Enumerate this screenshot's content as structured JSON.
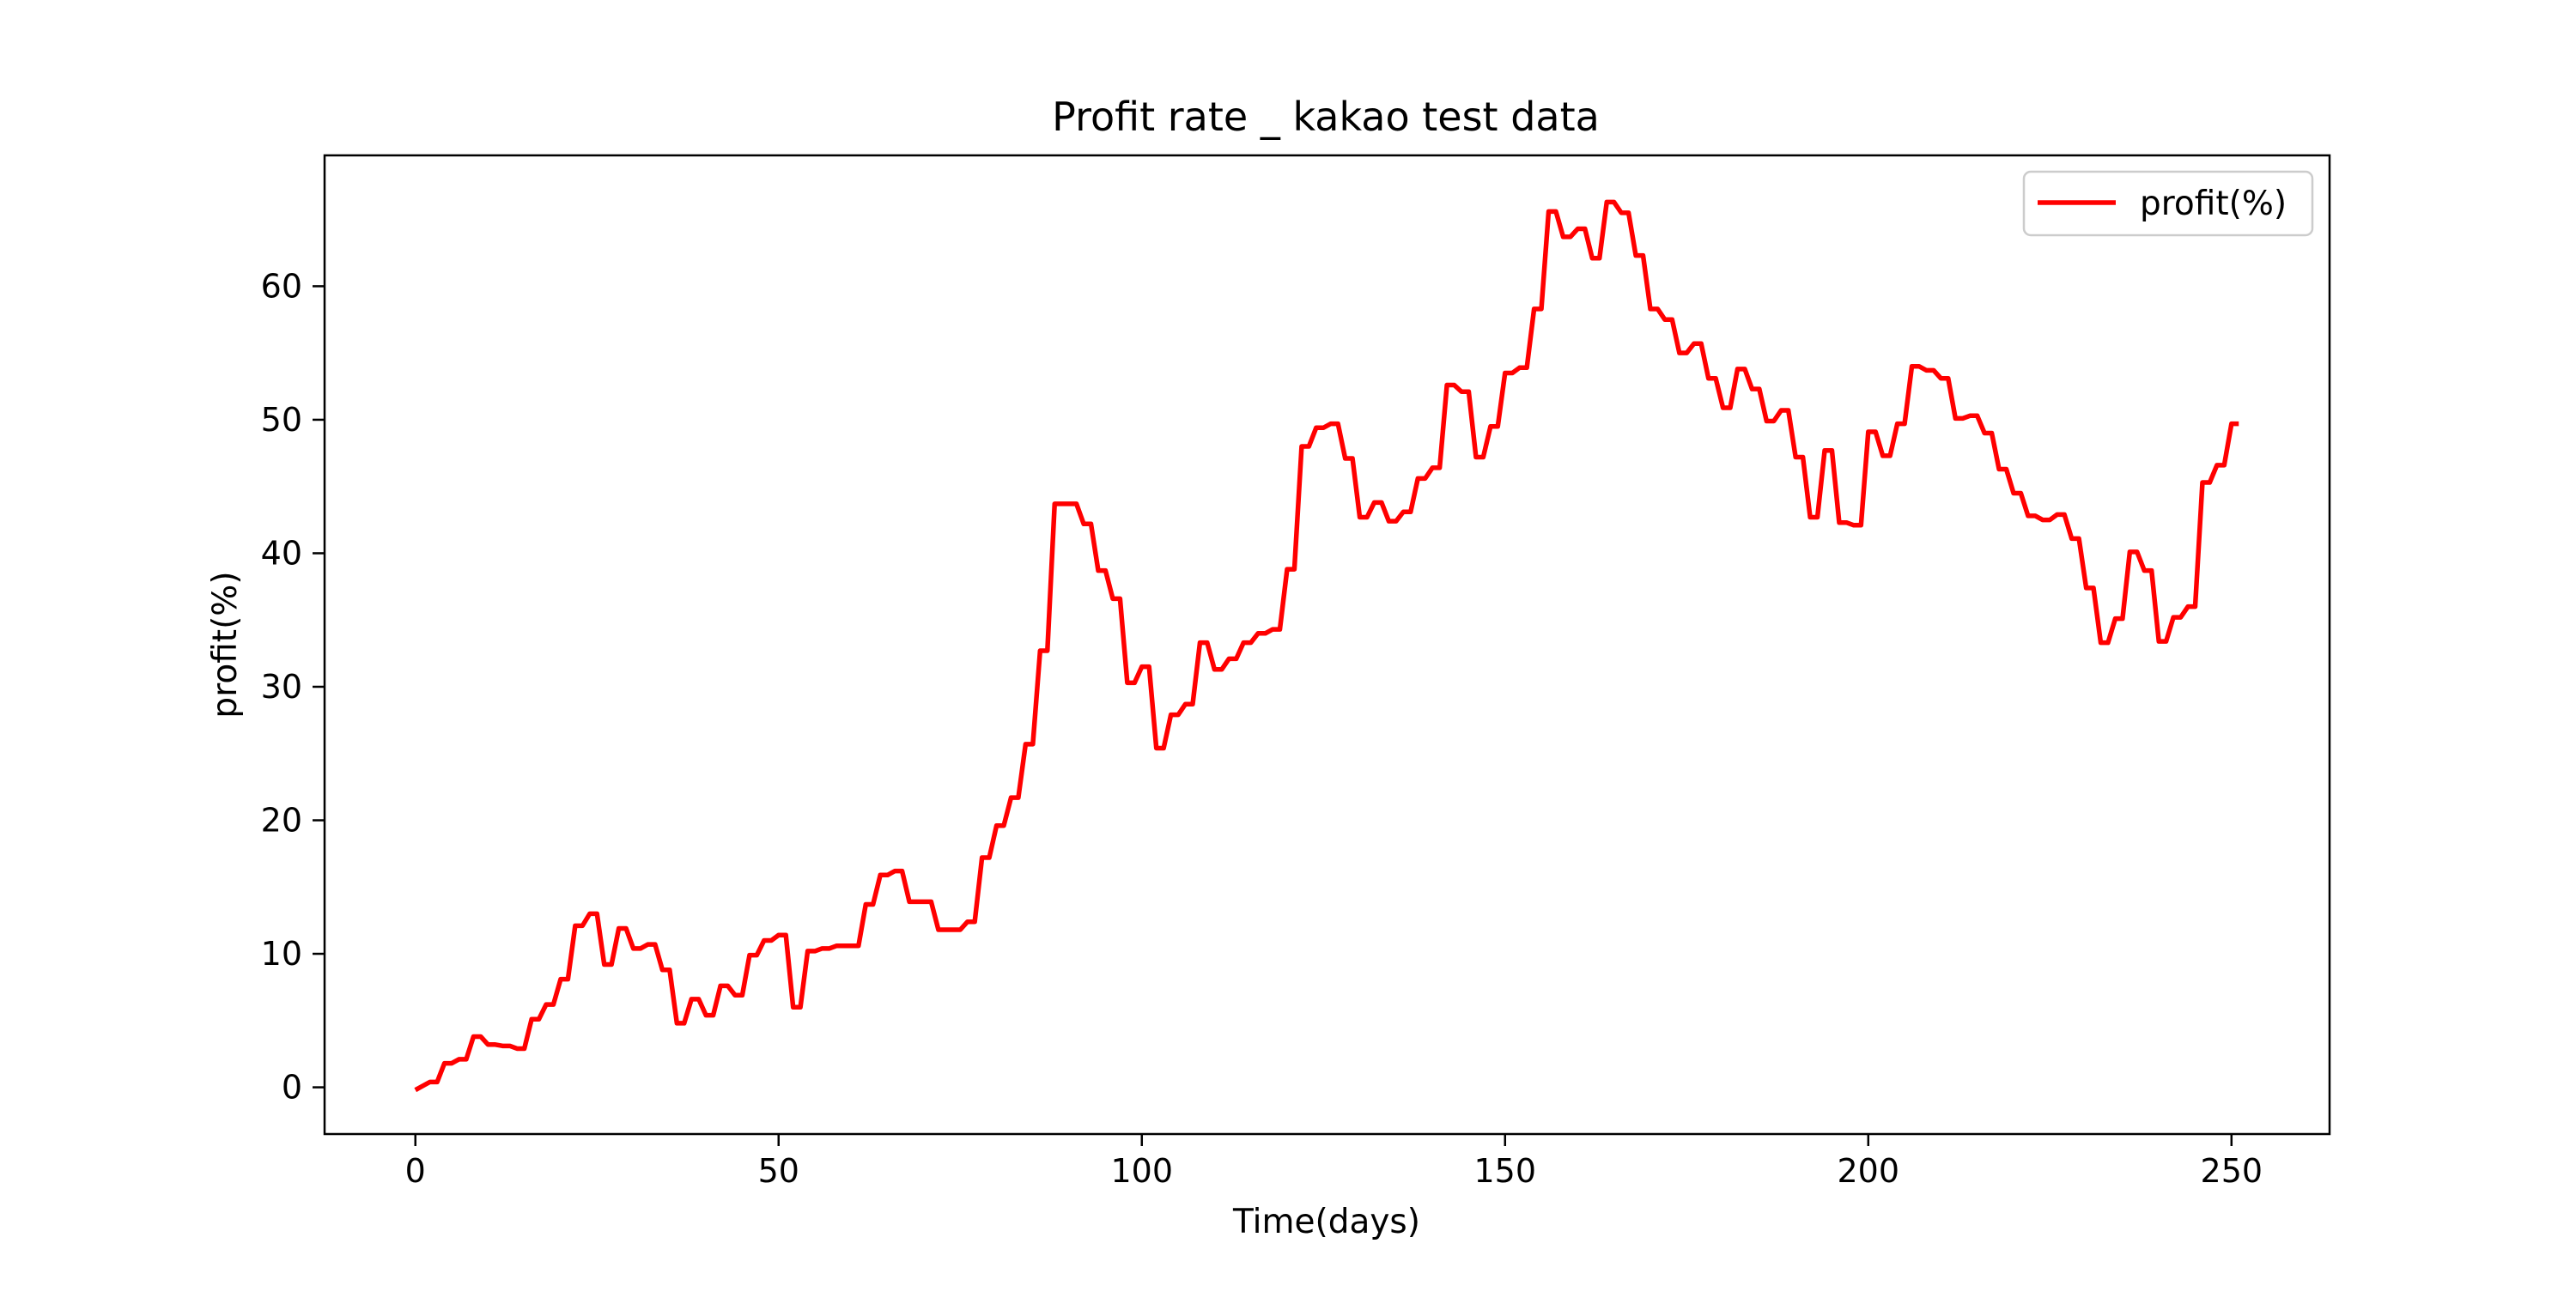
{
  "chart_data": {
    "type": "line",
    "title": "Profit rate _ kakao test data",
    "xlabel": "Time(days)",
    "ylabel": "profit(%)",
    "xlim": [
      -12.5,
      263.5
    ],
    "ylim": [
      -3.5,
      69.8
    ],
    "xticks": [
      0,
      50,
      100,
      150,
      200,
      250
    ],
    "yticks": [
      0,
      10,
      20,
      30,
      40,
      50,
      60
    ],
    "xtick_labels": [
      "0",
      "50",
      "100",
      "150",
      "200",
      "250"
    ],
    "ytick_labels": [
      "0",
      "10",
      "20",
      "30",
      "40",
      "50",
      "60"
    ],
    "grid": false,
    "legend_position": "top-right",
    "series": [
      {
        "name": "profit(%)",
        "color": "#ff0000",
        "values": [
          -0.2,
          0.1,
          0.4,
          0.4,
          1.8,
          1.8,
          2.1,
          2.1,
          3.8,
          3.8,
          3.2,
          3.2,
          3.1,
          3.1,
          2.9,
          2.9,
          5.1,
          5.1,
          6.2,
          6.2,
          8.1,
          8.1,
          12.1,
          12.1,
          13.0,
          13.0,
          9.2,
          9.2,
          11.9,
          11.9,
          10.4,
          10.4,
          10.7,
          10.7,
          8.8,
          8.8,
          4.8,
          4.8,
          6.6,
          6.6,
          5.4,
          5.4,
          7.6,
          7.6,
          6.9,
          6.9,
          9.9,
          9.9,
          11.0,
          11.0,
          11.4,
          11.4,
          6.0,
          6.0,
          10.2,
          10.2,
          10.4,
          10.4,
          10.6,
          10.6,
          10.6,
          10.6,
          13.7,
          13.7,
          15.9,
          15.9,
          16.2,
          16.2,
          13.9,
          13.9,
          13.9,
          13.9,
          11.8,
          11.8,
          11.8,
          11.8,
          12.4,
          12.4,
          17.2,
          17.2,
          19.6,
          19.6,
          21.7,
          21.7,
          25.7,
          25.7,
          32.7,
          32.7,
          43.7,
          43.7,
          43.7,
          43.7,
          42.2,
          42.2,
          38.7,
          38.7,
          36.6,
          36.6,
          30.3,
          30.3,
          31.5,
          31.5,
          25.4,
          25.4,
          27.9,
          27.9,
          28.7,
          28.7,
          33.3,
          33.3,
          31.3,
          31.3,
          32.1,
          32.1,
          33.3,
          33.3,
          34.0,
          34.0,
          34.3,
          34.3,
          38.8,
          38.8,
          48.0,
          48.0,
          49.4,
          49.4,
          49.7,
          49.7,
          47.1,
          47.1,
          42.7,
          42.7,
          43.8,
          43.8,
          42.4,
          42.4,
          43.1,
          43.1,
          45.6,
          45.6,
          46.4,
          46.4,
          52.6,
          52.6,
          52.1,
          52.1,
          47.2,
          47.2,
          49.5,
          49.5,
          53.5,
          53.5,
          53.9,
          53.9,
          58.3,
          58.3,
          65.6,
          65.6,
          63.7,
          63.7,
          64.3,
          64.3,
          62.1,
          62.1,
          66.3,
          66.3,
          65.5,
          65.5,
          62.3,
          62.3,
          58.3,
          58.3,
          57.5,
          57.5,
          55.0,
          55.0,
          55.7,
          55.7,
          53.1,
          53.1,
          50.9,
          50.9,
          53.8,
          53.8,
          52.3,
          52.3,
          49.9,
          49.9,
          50.7,
          50.7,
          47.2,
          47.2,
          42.7,
          42.7,
          47.7,
          47.7,
          42.3,
          42.3,
          42.1,
          42.1,
          49.1,
          49.1,
          47.3,
          47.3,
          49.7,
          49.7,
          54.0,
          54.0,
          53.7,
          53.7,
          53.1,
          53.1,
          50.1,
          50.1,
          50.3,
          50.3,
          49.0,
          49.0,
          46.3,
          46.3,
          44.5,
          44.5,
          42.8,
          42.8,
          42.5,
          42.5,
          42.9,
          42.9,
          41.1,
          41.1,
          37.4,
          37.4,
          33.3,
          33.3,
          35.1,
          35.1,
          40.1,
          40.1,
          38.7,
          38.7,
          33.4,
          33.4,
          35.2,
          35.2,
          36.0,
          36.0,
          45.3,
          45.3,
          46.6,
          46.6,
          49.7,
          49.7
        ]
      }
    ]
  }
}
